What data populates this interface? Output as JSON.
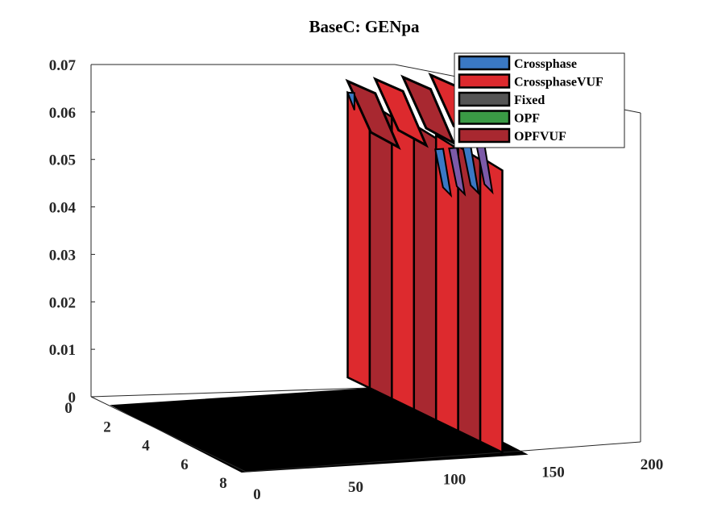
{
  "chart_data": {
    "type": "3d-surface",
    "title": "BaseC: GENpa",
    "xlabel": "",
    "ylabel": "",
    "zlabel": "",
    "x_ticks": [
      "0",
      "50",
      "100",
      "150",
      "200"
    ],
    "y_ticks": [
      "0",
      "2",
      "4",
      "6",
      "8"
    ],
    "z_ticks": [
      "0",
      "0.01",
      "0.02",
      "0.03",
      "0.04",
      "0.05",
      "0.06",
      "0.07"
    ],
    "xlim": [
      0,
      200
    ],
    "ylim": [
      0,
      8
    ],
    "zlim": [
      0,
      0.07
    ],
    "grid": false,
    "legend_position": "top-right",
    "series": [
      {
        "name": "Crossphase",
        "color": "#3a78c4"
      },
      {
        "name": "CrossphaseVUF",
        "color": "#dd2a2e"
      },
      {
        "name": "Fixed",
        "color": "#555555"
      },
      {
        "name": "OPF",
        "color": "#3a9a45"
      },
      {
        "name": "OPFVUF",
        "color": "#a82830"
      }
    ],
    "surface_summary": {
      "x_step_onset": 130,
      "plateau_value_approx": 0.06,
      "floor_value": 0
    }
  }
}
